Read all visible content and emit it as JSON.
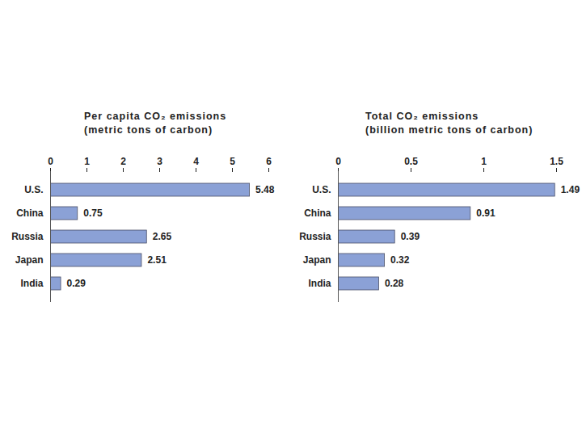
{
  "chart_data": [
    {
      "type": "bar",
      "orientation": "horizontal",
      "title": "Per capita CO₂ emissions",
      "subtitle": "(metric tons of carbon)",
      "categories": [
        "U.S.",
        "China",
        "Russia",
        "Japan",
        "India"
      ],
      "values": [
        5.48,
        0.75,
        2.65,
        2.51,
        0.29
      ],
      "color": "#8ba1d6",
      "xlim": [
        0,
        6
      ],
      "xticks": [
        0,
        1,
        2,
        3,
        4,
        5,
        6
      ],
      "grid": false,
      "data_labels": true
    },
    {
      "type": "bar",
      "orientation": "horizontal",
      "title": "Total CO₂ emissions",
      "subtitle": "(billion metric tons of carbon)",
      "categories": [
        "U.S.",
        "China",
        "Russia",
        "Japan",
        "India"
      ],
      "values": [
        1.49,
        0.91,
        0.39,
        0.32,
        0.28
      ],
      "color": "#8ba1d6",
      "xlim": [
        0,
        1.5
      ],
      "xticks": [
        0,
        0.5,
        1,
        1.5
      ],
      "grid": false,
      "data_labels": true
    }
  ]
}
